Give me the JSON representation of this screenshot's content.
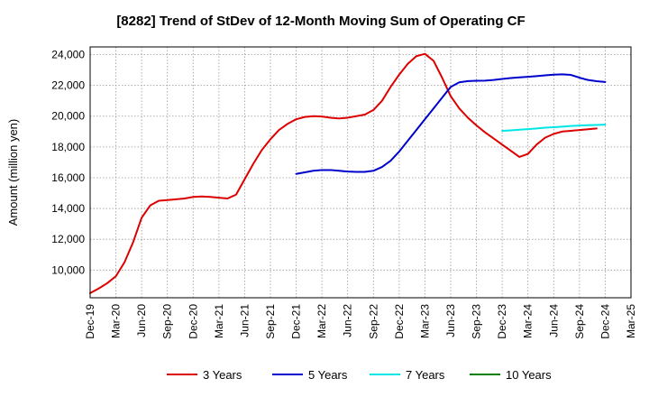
{
  "chart_data": {
    "type": "line",
    "title": "[8282]  Trend of StDev of 12-Month Moving Sum of Operating CF",
    "xlabel": "",
    "ylabel": "Amount (million yen)",
    "ylim": [
      8200,
      24500
    ],
    "y_ticks": [
      10000,
      12000,
      14000,
      16000,
      18000,
      20000,
      22000,
      24000
    ],
    "y_tick_labels": [
      "10,000",
      "12,000",
      "14,000",
      "16,000",
      "18,000",
      "20,000",
      "22,000",
      "24,000"
    ],
    "x_ticks": [
      "Dec-19",
      "Mar-20",
      "Jun-20",
      "Sep-20",
      "Dec-20",
      "Mar-21",
      "Jun-21",
      "Sep-21",
      "Dec-21",
      "Mar-22",
      "Jun-22",
      "Sep-22",
      "Dec-22",
      "Mar-23",
      "Jun-23",
      "Sep-23",
      "Dec-23",
      "Mar-24",
      "Jun-24",
      "Sep-24",
      "Dec-24",
      "Mar-25"
    ],
    "grid": true,
    "legend_position": "bottom",
    "series": [
      {
        "name": "3 Years",
        "color": "#dd0000",
        "start": "Dec-19",
        "values": [
          8500,
          8800,
          9150,
          9600,
          10500,
          11800,
          13400,
          14200,
          14500,
          14550,
          14600,
          14650,
          14750,
          14780,
          14750,
          14700,
          14650,
          14900,
          15900,
          16900,
          17800,
          18500,
          19100,
          19500,
          19800,
          19950,
          20000,
          19980,
          19900,
          19850,
          19900,
          20000,
          20100,
          20400,
          21000,
          21900,
          22700,
          23400,
          23900,
          24050,
          23600,
          22500,
          21300,
          20500,
          19900,
          19400,
          18950,
          18550,
          18150,
          17750,
          17350,
          17550,
          18150,
          18600,
          18850,
          19000,
          19050,
          19100,
          19150,
          19200
        ]
      },
      {
        "name": "5 Years",
        "color": "#0000cc",
        "start": "Dec-21",
        "values": [
          16250,
          16350,
          16450,
          16500,
          16500,
          16450,
          16400,
          16380,
          16380,
          16450,
          16700,
          17100,
          17700,
          18400,
          19100,
          19800,
          20500,
          21200,
          21900,
          22200,
          22280,
          22300,
          22310,
          22350,
          22420,
          22480,
          22520,
          22560,
          22600,
          22650,
          22700,
          22720,
          22680,
          22500,
          22350,
          22270,
          22220
        ]
      },
      {
        "name": "7 Years",
        "color": "#00e5e5",
        "start": "Dec-23",
        "values": [
          19050,
          19080,
          19120,
          19160,
          19200,
          19250,
          19280,
          19320,
          19360,
          19390,
          19410,
          19430,
          19450
        ]
      },
      {
        "name": "10 Years",
        "color": "#008000",
        "start": "Dec-24",
        "values": []
      }
    ]
  }
}
